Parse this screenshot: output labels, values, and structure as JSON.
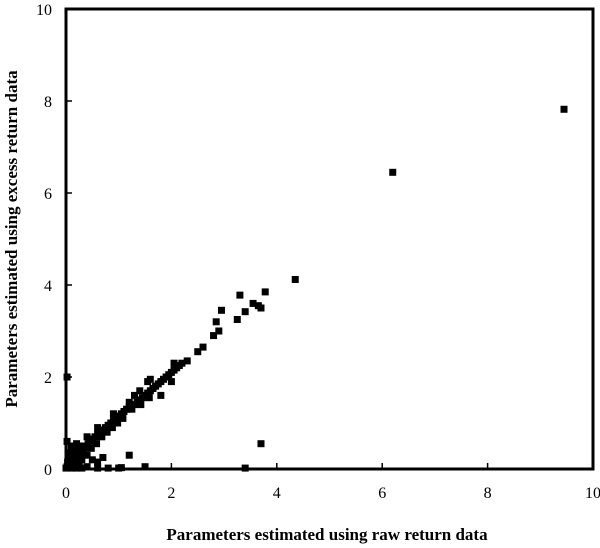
{
  "chart_data": {
    "type": "scatter",
    "title": "",
    "xlabel": "Parameters estimated using raw return data",
    "ylabel": "Parameters estimated using excess return data",
    "xlim": [
      0,
      10
    ],
    "ylim": [
      0,
      10
    ],
    "xticks": [
      "0",
      "2",
      "4",
      "6",
      "8",
      "10"
    ],
    "yticks": [
      "0",
      "2",
      "4",
      "6",
      "8",
      "10"
    ],
    "grid": false,
    "legend": "none",
    "marker_color": "#000000",
    "marker": "square",
    "points": [
      {
        "x": 0.0,
        "y": 0.02
      },
      {
        "x": 0.02,
        "y": 0.05
      },
      {
        "x": 0.05,
        "y": 0.1
      },
      {
        "x": 0.03,
        "y": 0.15
      },
      {
        "x": 0.08,
        "y": 0.2
      },
      {
        "x": 0.1,
        "y": 0.08
      },
      {
        "x": 0.12,
        "y": 0.3
      },
      {
        "x": 0.15,
        "y": 0.4
      },
      {
        "x": 0.05,
        "y": 0.35
      },
      {
        "x": 0.18,
        "y": 0.25
      },
      {
        "x": 0.2,
        "y": 0.45
      },
      {
        "x": 0.22,
        "y": 0.1
      },
      {
        "x": 0.25,
        "y": 0.3
      },
      {
        "x": 0.28,
        "y": 0.4
      },
      {
        "x": 0.3,
        "y": 0.2
      },
      {
        "x": 0.32,
        "y": 0.35
      },
      {
        "x": 0.35,
        "y": 0.45
      },
      {
        "x": 0.38,
        "y": 0.5
      },
      {
        "x": 0.4,
        "y": 0.3
      },
      {
        "x": 0.42,
        "y": 0.55
      },
      {
        "x": 0.45,
        "y": 0.6
      },
      {
        "x": 0.48,
        "y": 0.45
      },
      {
        "x": 0.5,
        "y": 0.65
      },
      {
        "x": 0.55,
        "y": 0.7
      },
      {
        "x": 0.58,
        "y": 0.55
      },
      {
        "x": 0.6,
        "y": 0.75
      },
      {
        "x": 0.65,
        "y": 0.8
      },
      {
        "x": 0.68,
        "y": 0.7
      },
      {
        "x": 0.7,
        "y": 0.85
      },
      {
        "x": 0.75,
        "y": 0.9
      },
      {
        "x": 0.78,
        "y": 0.8
      },
      {
        "x": 0.8,
        "y": 0.95
      },
      {
        "x": 0.85,
        "y": 1.0
      },
      {
        "x": 0.88,
        "y": 0.9
      },
      {
        "x": 0.9,
        "y": 1.05
      },
      {
        "x": 0.95,
        "y": 1.1
      },
      {
        "x": 0.98,
        "y": 1.0
      },
      {
        "x": 1.0,
        "y": 1.15
      },
      {
        "x": 1.05,
        "y": 1.2
      },
      {
        "x": 1.08,
        "y": 1.1
      },
      {
        "x": 1.1,
        "y": 1.25
      },
      {
        "x": 1.15,
        "y": 1.3
      },
      {
        "x": 1.2,
        "y": 1.35
      },
      {
        "x": 1.25,
        "y": 1.3
      },
      {
        "x": 1.3,
        "y": 1.4
      },
      {
        "x": 1.35,
        "y": 1.45
      },
      {
        "x": 1.4,
        "y": 1.5
      },
      {
        "x": 1.42,
        "y": 1.4
      },
      {
        "x": 1.45,
        "y": 1.55
      },
      {
        "x": 1.5,
        "y": 1.6
      },
      {
        "x": 1.55,
        "y": 1.65
      },
      {
        "x": 1.58,
        "y": 1.55
      },
      {
        "x": 1.6,
        "y": 1.7
      },
      {
        "x": 1.65,
        "y": 1.75
      },
      {
        "x": 1.7,
        "y": 1.8
      },
      {
        "x": 1.75,
        "y": 1.85
      },
      {
        "x": 1.8,
        "y": 1.9
      },
      {
        "x": 1.85,
        "y": 1.95
      },
      {
        "x": 1.9,
        "y": 2.0
      },
      {
        "x": 1.95,
        "y": 2.05
      },
      {
        "x": 2.0,
        "y": 2.1
      },
      {
        "x": 2.05,
        "y": 2.15
      },
      {
        "x": 2.1,
        "y": 2.2
      },
      {
        "x": 2.15,
        "y": 2.25
      },
      {
        "x": 2.2,
        "y": 2.3
      },
      {
        "x": 1.4,
        "y": 1.7
      },
      {
        "x": 1.55,
        "y": 1.9
      },
      {
        "x": 1.6,
        "y": 1.95
      },
      {
        "x": 1.8,
        "y": 1.6
      },
      {
        "x": 2.0,
        "y": 1.9
      },
      {
        "x": 2.05,
        "y": 2.3
      },
      {
        "x": 1.3,
        "y": 1.6
      },
      {
        "x": 1.2,
        "y": 1.45
      },
      {
        "x": 0.9,
        "y": 1.2
      },
      {
        "x": 0.6,
        "y": 0.9
      },
      {
        "x": 2.3,
        "y": 2.35
      },
      {
        "x": 2.5,
        "y": 2.55
      },
      {
        "x": 2.6,
        "y": 2.65
      },
      {
        "x": 2.8,
        "y": 2.9
      },
      {
        "x": 2.85,
        "y": 3.2
      },
      {
        "x": 2.9,
        "y": 3.0
      },
      {
        "x": 2.95,
        "y": 3.45
      },
      {
        "x": 3.25,
        "y": 3.25
      },
      {
        "x": 3.3,
        "y": 3.78
      },
      {
        "x": 3.4,
        "y": 3.42
      },
      {
        "x": 3.55,
        "y": 3.6
      },
      {
        "x": 3.65,
        "y": 3.55
      },
      {
        "x": 3.7,
        "y": 3.5
      },
      {
        "x": 3.78,
        "y": 3.85
      },
      {
        "x": 4.35,
        "y": 4.12
      },
      {
        "x": 6.2,
        "y": 6.45
      },
      {
        "x": 9.45,
        "y": 7.82
      },
      {
        "x": 0.02,
        "y": 2.0
      },
      {
        "x": 0.02,
        "y": 0.6
      },
      {
        "x": 0.1,
        "y": 0.5
      },
      {
        "x": 0.2,
        "y": 0.55
      },
      {
        "x": 0.3,
        "y": 0.5
      },
      {
        "x": 0.4,
        "y": 0.7
      },
      {
        "x": 0.5,
        "y": 0.2
      },
      {
        "x": 0.6,
        "y": 0.15
      },
      {
        "x": 0.4,
        "y": 0.05
      },
      {
        "x": 0.3,
        "y": 0.02
      },
      {
        "x": 0.7,
        "y": 0.25
      },
      {
        "x": 0.6,
        "y": 0.02
      },
      {
        "x": 0.8,
        "y": 0.02
      },
      {
        "x": 1.0,
        "y": 0.02
      },
      {
        "x": 1.05,
        "y": 0.03
      },
      {
        "x": 1.2,
        "y": 0.3
      },
      {
        "x": 1.5,
        "y": 0.05
      },
      {
        "x": 3.4,
        "y": 0.02
      },
      {
        "x": 3.7,
        "y": 0.55
      },
      {
        "x": 0.1,
        "y": 0.02
      },
      {
        "x": 0.2,
        "y": 0.02
      },
      {
        "x": 0.25,
        "y": 0.15
      },
      {
        "x": 0.15,
        "y": 0.1
      }
    ]
  }
}
